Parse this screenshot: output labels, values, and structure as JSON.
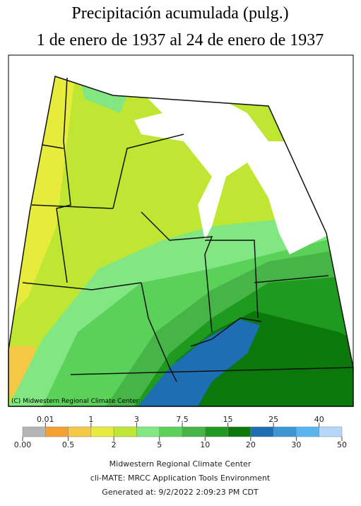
{
  "header": {
    "title": "Precipitación acumulada (pulg.)",
    "subtitle": "1 de enero de 1937 al 24 de enero de 1937"
  },
  "map": {
    "credit": "(C) Midwestern Regional Climate Center"
  },
  "legend": {
    "labels": [
      "0.00",
      "0.01",
      "0.5",
      "1",
      "2",
      "3",
      "5",
      "7.5",
      "10",
      "15",
      "20",
      "25",
      "30",
      "40",
      "50"
    ],
    "colors": [
      "#b4b4b4",
      "#f5a030",
      "#f5c846",
      "#e6eb3c",
      "#bee632",
      "#82e682",
      "#5ad25a",
      "#46b446",
      "#1e9b1e",
      "#0a780a",
      "#1e6eb4",
      "#3c96d2",
      "#5ab4f0",
      "#b4d7fa",
      "#d78cf0"
    ]
  },
  "footer": {
    "line1": "Midwestern Regional Climate Center",
    "line2": "cli-MATE: MRCC Application Tools Environment",
    "line3": "Generated at: 9/2/2022 2:09:23 PM CDT"
  }
}
